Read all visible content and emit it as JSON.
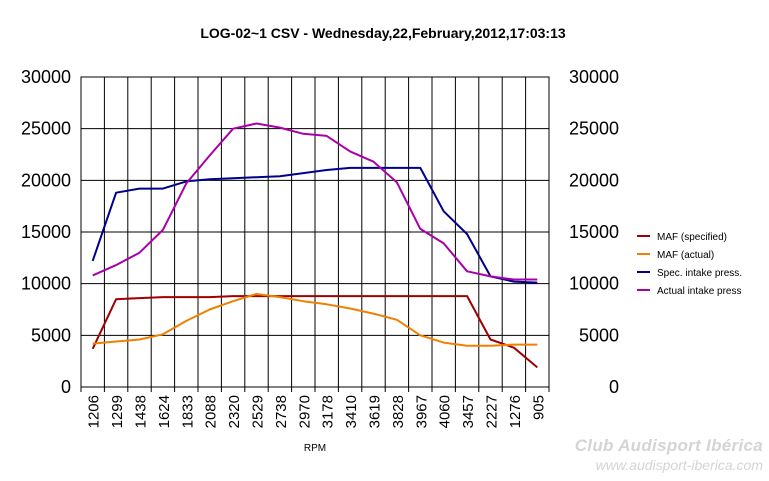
{
  "chart_data": {
    "type": "line",
    "title": "LOG-02~1 CSV - Wednesday,22,February,2012,17:03:13",
    "xlabel": "RPM",
    "ylabel": "",
    "ylim": [
      0,
      30000
    ],
    "yticks": [
      "0",
      "5000",
      "10000",
      "15000",
      "20000",
      "25000",
      "30000"
    ],
    "y2ticks": [
      "0",
      "5000",
      "10000",
      "15000",
      "20000",
      "25000",
      "30000"
    ],
    "categories": [
      "1206",
      "1299",
      "1438",
      "1624",
      "1833",
      "2088",
      "2320",
      "2529",
      "2738",
      "2970",
      "3178",
      "3410",
      "3619",
      "3828",
      "3967",
      "4060",
      "3457",
      "2227",
      "1276",
      "905"
    ],
    "grid": true,
    "legend_position": "right",
    "series": [
      {
        "name": "MAF (specified)",
        "color": "#a00000",
        "values": [
          3700,
          8500,
          8600,
          8700,
          8700,
          8700,
          8800,
          8800,
          8800,
          8800,
          8800,
          8800,
          8800,
          8800,
          8800,
          8800,
          8800,
          4600,
          3800,
          1900
        ]
      },
      {
        "name": "MAF (actual)",
        "color": "#f08000",
        "values": [
          4200,
          4400,
          4600,
          5100,
          6400,
          7500,
          8300,
          9000,
          8700,
          8300,
          8000,
          7600,
          7100,
          6500,
          5000,
          4300,
          4000,
          4000,
          4100,
          4100
        ]
      },
      {
        "name": "Spec. intake press.",
        "color": "#00008b",
        "values": [
          12200,
          18800,
          19200,
          19200,
          19900,
          20100,
          20200,
          20300,
          20400,
          20700,
          21000,
          21200,
          21200,
          21200,
          21200,
          17000,
          14800,
          10700,
          10200,
          10100
        ]
      },
      {
        "name": "Actual intake press",
        "color": "#aa00aa",
        "values": [
          10800,
          11800,
          13000,
          15200,
          19700,
          22400,
          25000,
          25500,
          25100,
          24500,
          24300,
          22800,
          21800,
          19800,
          15300,
          13900,
          11200,
          10700,
          10400,
          10400
        ]
      }
    ]
  },
  "watermark": {
    "line1": "Club Audisport Ibérica",
    "line2": "www.audisport-iberica.com"
  }
}
